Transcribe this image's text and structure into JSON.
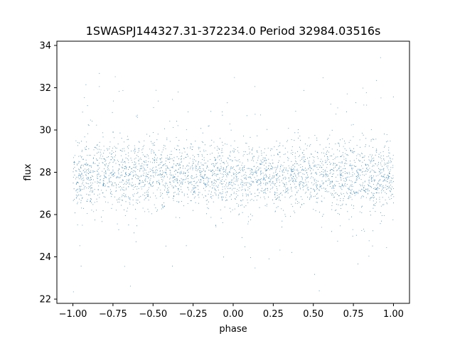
{
  "chart_data": {
    "type": "scatter",
    "title": "1SWASPJ144327.31-372234.0 Period 32984.03516s",
    "xlabel": "phase",
    "ylabel": "flux",
    "xlim": [
      -1.1,
      1.1
    ],
    "ylim": [
      21.8,
      34.2
    ],
    "xticks": [
      -1.0,
      -0.75,
      -0.5,
      -0.25,
      0.0,
      0.25,
      0.5,
      0.75,
      1.0
    ],
    "xtick_labels": [
      "−1.00",
      "−0.75",
      "−0.50",
      "−0.25",
      "0.00",
      "0.25",
      "0.50",
      "0.75",
      "1.00"
    ],
    "yticks": [
      22,
      24,
      26,
      28,
      30,
      32,
      34
    ],
    "ytick_labels": [
      "22",
      "24",
      "26",
      "28",
      "30",
      "32",
      "34"
    ],
    "point_color": "#1f77b4",
    "grid": false,
    "series": [
      {
        "x_range": [
          -1.0,
          1.0
        ],
        "y_range": [
          22.3,
          33.5
        ],
        "center_flux": 27.9,
        "core_band": [
          26.2,
          29.6
        ],
        "phase_structure": [
          {
            "phase": -1.0,
            "center": 27.8,
            "spread": 0.75
          },
          {
            "phase": -0.75,
            "center": 28.0,
            "spread": 0.85
          },
          {
            "phase": -0.5,
            "center": 27.9,
            "spread": 0.8
          },
          {
            "phase": -0.25,
            "center": 27.9,
            "spread": 0.7
          },
          {
            "phase": 0.0,
            "center": 27.8,
            "spread": 0.72
          },
          {
            "phase": 0.25,
            "center": 27.8,
            "spread": 0.7
          },
          {
            "phase": 0.5,
            "center": 27.9,
            "spread": 0.75
          },
          {
            "phase": 0.75,
            "center": 27.8,
            "spread": 0.8
          },
          {
            "phase": 1.0,
            "center": 27.8,
            "spread": 0.75
          }
        ]
      }
    ]
  }
}
